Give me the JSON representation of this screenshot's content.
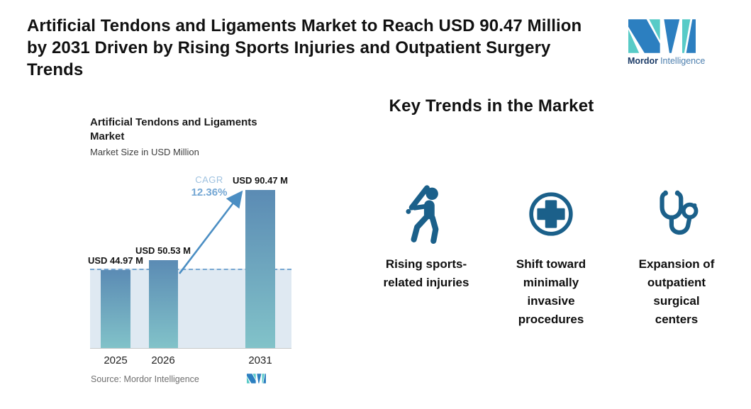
{
  "header": {
    "title": "Artificial Tendons and Ligaments Market to Reach USD 90.47 Million\nby 2031 Driven by Rising Sports Injuries and Outpatient Surgery\nTrends",
    "logo": {
      "brand_bold": "Mordor",
      "brand_light": "Intelligence"
    }
  },
  "chart_data": {
    "type": "bar",
    "title": "Artificial Tendons and Ligaments\nMarket",
    "subtitle": "Market Size in USD Million",
    "categories": [
      "2025",
      "2026",
      "2031"
    ],
    "values": [
      44.97,
      50.53,
      90.47
    ],
    "value_labels": [
      "USD 44.97 M",
      "USD 50.53 M",
      "USD 90.47 M"
    ],
    "unit": "USD Million",
    "cagr": {
      "label": "CAGR",
      "value": "12.36%"
    },
    "ylim": [
      0,
      90.47
    ],
    "grid": false,
    "annotations": [
      "dashed reference line at 2025 level",
      "growth arrow from 2026 bar to 2031 bar"
    ],
    "source": "Source: Mordor Intelligence",
    "colors": {
      "bar_top": "#5b8bb4",
      "bar_bottom": "#82c3c9",
      "band": "#dfe9f2",
      "dashed_line": "#76a6d1",
      "arrow": "#4b8ec3"
    }
  },
  "trends": {
    "heading": "Key Trends in the Market",
    "icon_color": "#1b608a",
    "items": [
      {
        "icon": "baseball-batter-icon",
        "label": "Rising sports-\nrelated injuries"
      },
      {
        "icon": "medical-cross-icon",
        "label": "Shift toward\nminimally\ninvasive\nprocedures"
      },
      {
        "icon": "stethoscope-icon",
        "label": "Expansion of\noutpatient\nsurgical\ncenters"
      }
    ]
  }
}
